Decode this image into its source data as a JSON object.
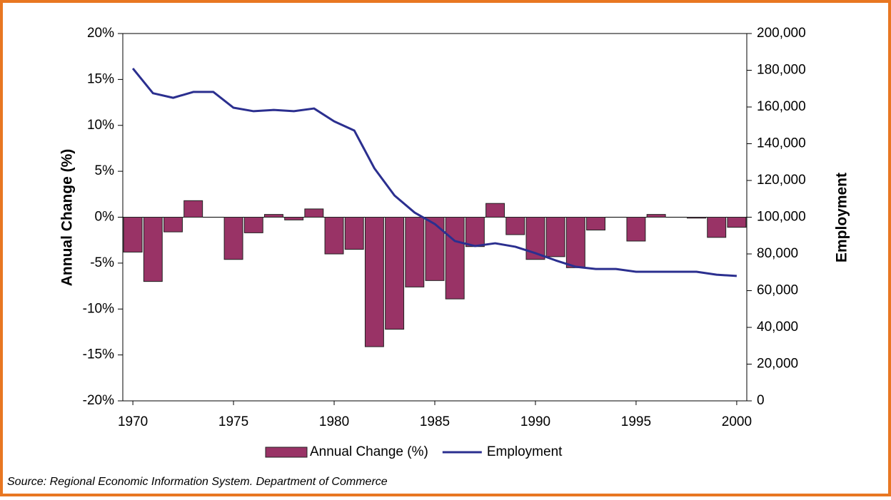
{
  "chart_data": {
    "type": "bar-line",
    "ylabel": "Annual Change (%)",
    "y2label": "Employment",
    "source": "Source: Regional Economic Information System. Department of Commerce",
    "x": [
      1970,
      1971,
      1972,
      1973,
      1974,
      1975,
      1976,
      1977,
      1978,
      1979,
      1980,
      1981,
      1982,
      1983,
      1984,
      1985,
      1986,
      1987,
      1988,
      1989,
      1990,
      1991,
      1992,
      1993,
      1994,
      1995,
      1996,
      1997,
      1998,
      1999,
      2000
    ],
    "series": [
      {
        "name": "Annual Change (%)",
        "type": "bar",
        "color": "#993366",
        "values": [
          -3.8,
          -7.0,
          -1.6,
          1.8,
          0,
          -4.6,
          -1.7,
          0.3,
          -0.3,
          0.9,
          -4.0,
          -3.5,
          -14.1,
          -12.2,
          -7.6,
          -6.9,
          -8.9,
          -3.2,
          1.5,
          -1.9,
          -4.6,
          -4.3,
          -5.5,
          -1.4,
          0,
          -2.6,
          0.3,
          0,
          -0.1,
          -2.2,
          -1.1
        ]
      },
      {
        "name": "Employment",
        "type": "line",
        "axis": "y2",
        "color": "#2b2f8f",
        "values": [
          181000,
          167500,
          165000,
          168200,
          168200,
          159600,
          157700,
          158400,
          157700,
          159200,
          152200,
          147200,
          126600,
          111800,
          102500,
          96300,
          87000,
          84300,
          85800,
          83900,
          80400,
          76500,
          73000,
          71800,
          71800,
          70300,
          70300,
          70300,
          70300,
          68700,
          68000
        ]
      }
    ],
    "xlim": [
      1969.5,
      2000.5
    ],
    "xticks": [
      1970,
      1975,
      1980,
      1985,
      1990,
      1995,
      2000
    ],
    "ylim": [
      -20,
      20
    ],
    "yticks": [
      {
        "value": -20,
        "label": "-20%"
      },
      {
        "value": -15,
        "label": "-15%"
      },
      {
        "value": -10,
        "label": "-10%"
      },
      {
        "value": -5,
        "label": "-5%"
      },
      {
        "value": 0,
        "label": "0%"
      },
      {
        "value": 5,
        "label": "5%"
      },
      {
        "value": 10,
        "label": "10%"
      },
      {
        "value": 15,
        "label": "15%"
      },
      {
        "value": 20,
        "label": "20%"
      }
    ],
    "y2lim": [
      0,
      200000
    ],
    "y2ticks": [
      0,
      {
        "value": 20000,
        "label": "20,000"
      },
      {
        "value": 40000,
        "label": "40,000"
      },
      {
        "value": 60000,
        "label": "60,000"
      },
      {
        "value": 80000,
        "label": "80,000"
      },
      {
        "value": 100000,
        "label": "100,000"
      },
      {
        "value": 120000,
        "label": "120,000"
      },
      {
        "value": 140000,
        "label": "140,000"
      },
      {
        "value": 160000,
        "label": "160,000"
      },
      {
        "value": 180000,
        "label": "180,000"
      },
      {
        "value": 200000,
        "label": "200,000"
      }
    ],
    "legend": "bottom"
  }
}
